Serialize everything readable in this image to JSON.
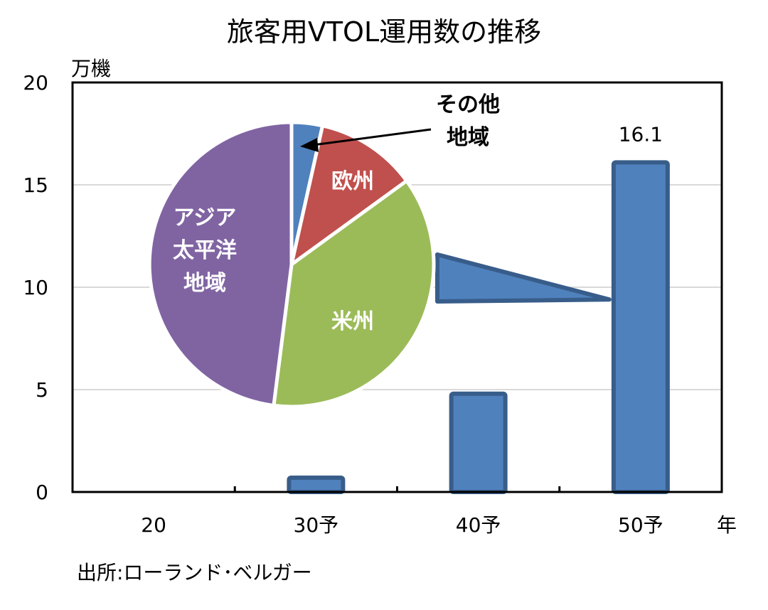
{
  "chart_data": {
    "type": "bar",
    "title": "旅客用VTOL運用数の推移",
    "ylabel": "万機",
    "xlabel": "年",
    "categories": [
      "20",
      "30予",
      "40予",
      "50予"
    ],
    "values": [
      0,
      0.7,
      4.8,
      16.1
    ],
    "value_labels": [
      "",
      "",
      "",
      "16.1"
    ],
    "ylim": [
      0,
      20
    ],
    "yticks": [
      "0",
      "5",
      "10",
      "15",
      "20"
    ],
    "grid": true,
    "source": "出所:ローランド･ベルガー",
    "bar_color": "#4f81bd",
    "bar_edge_color": "#385d8a",
    "inset_pie": {
      "type": "pie",
      "linked_category": "50予",
      "slices": [
        {
          "label": "その他\n地域",
          "value": 3.5,
          "color": "#4f81bd",
          "label_color": "#000000"
        },
        {
          "label": "欧州",
          "value": 11.5,
          "color": "#c0504d",
          "label_color": "#ffffff"
        },
        {
          "label": "米州",
          "value": 37,
          "color": "#9bbb59",
          "label_color": "#ffffff"
        },
        {
          "label": "アジア\n太平洋\n地域",
          "value": 48,
          "color": "#8064a2",
          "label_color": "#ffffff"
        }
      ]
    }
  }
}
